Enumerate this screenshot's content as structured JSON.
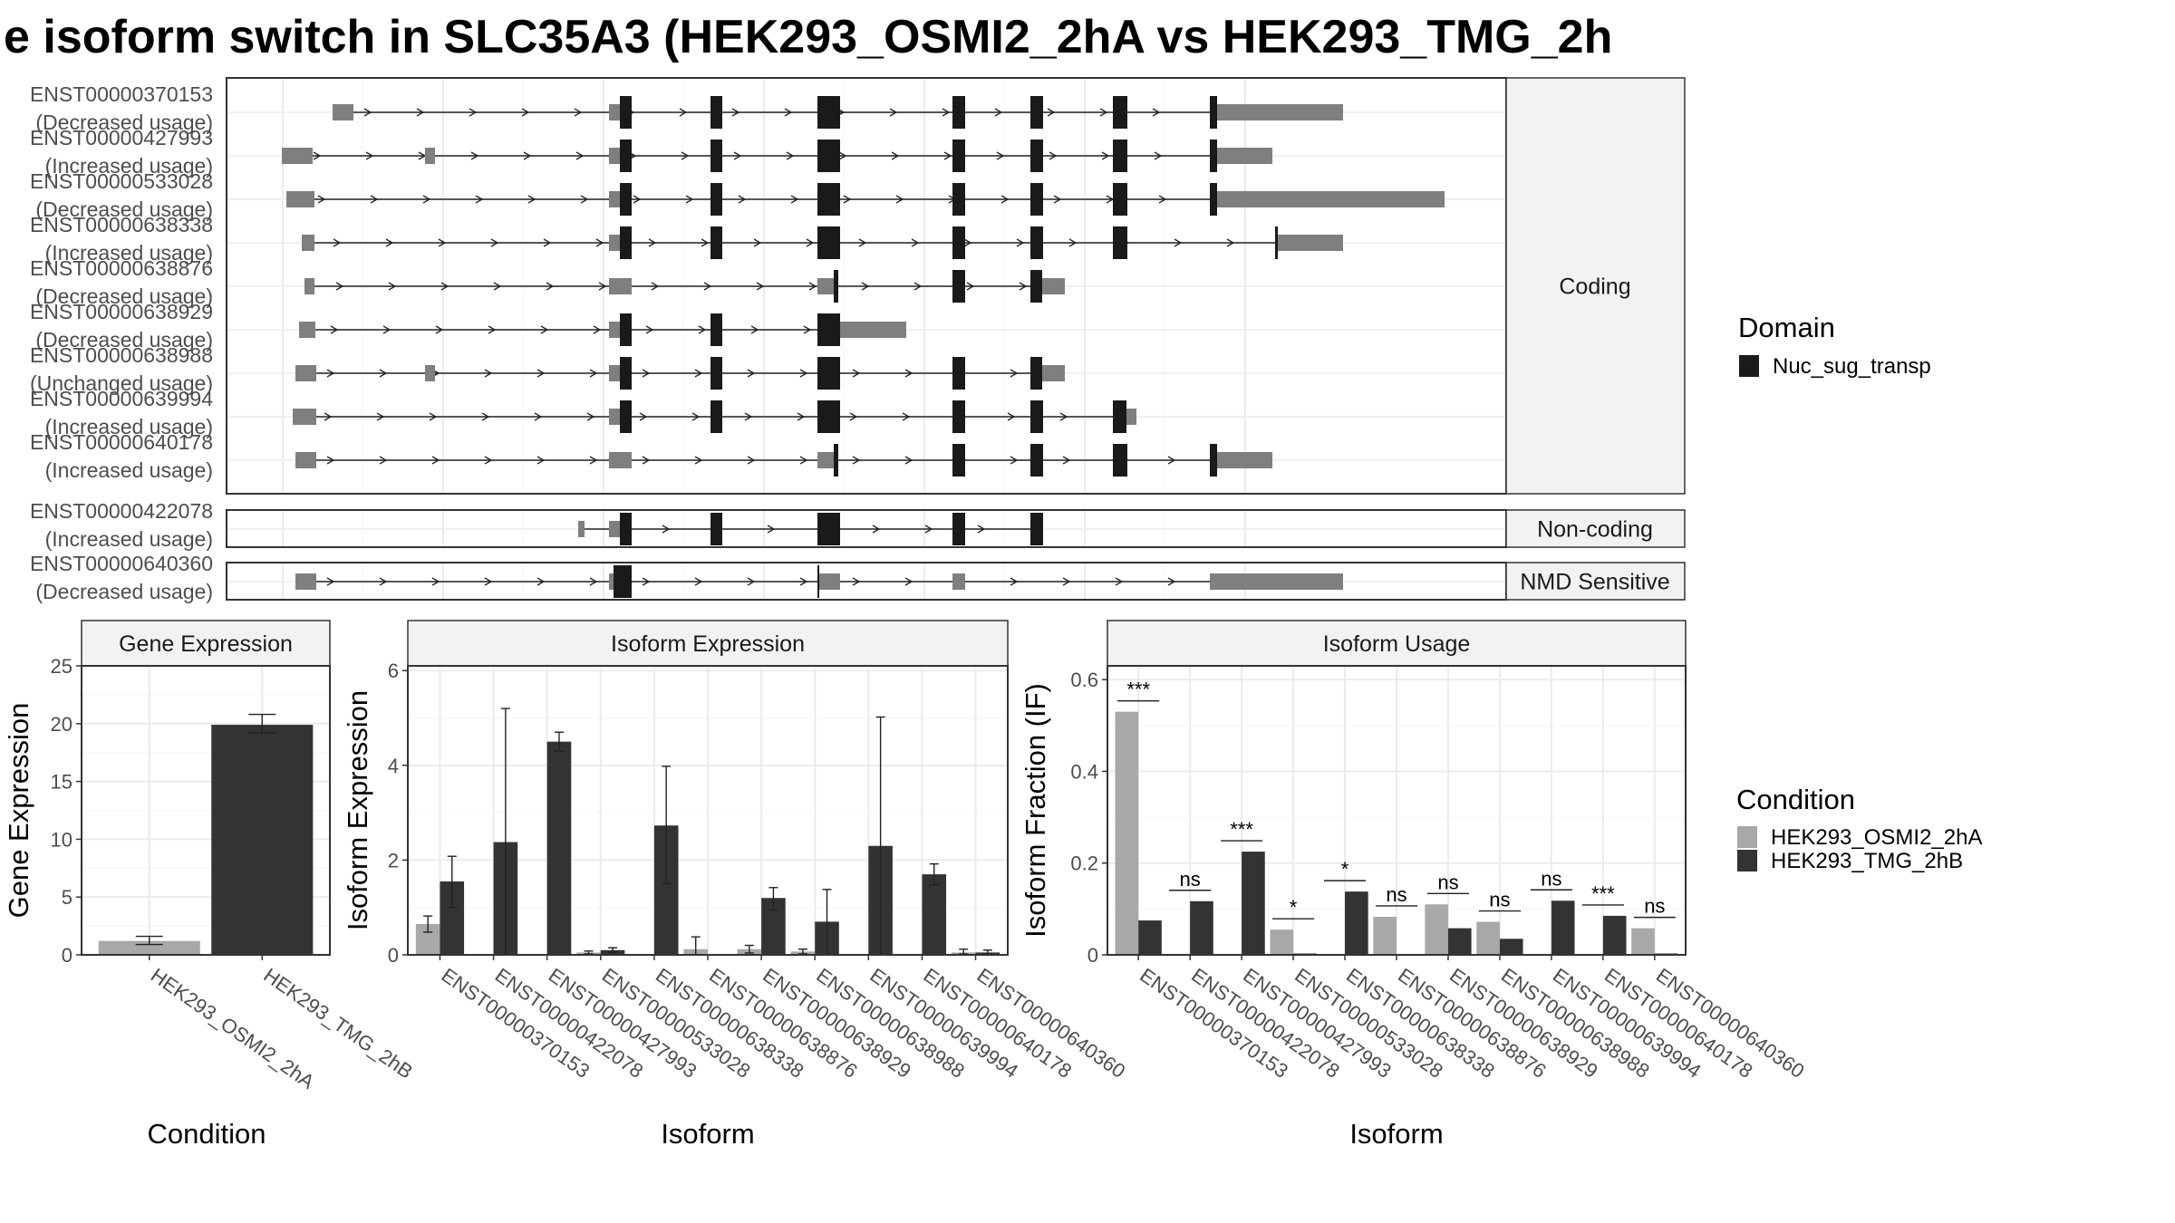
{
  "title": "e isoform switch in SLC35A3 (HEK293_OSMI2_2hA vs HEK293_TMG_2h",
  "colors": {
    "condition_a": "#a8a8a8",
    "condition_b": "#333333",
    "exon_coding": "#1a1a1a",
    "exon_utr": "#7f7f7f",
    "strip_bg": "#f2f2f2",
    "grid": "#ebebeb"
  },
  "transcript_panel": {
    "groups": [
      {
        "label": "Coding",
        "transcripts": [
          {
            "id": "ENST00000370153",
            "usage": "(Decreased usage)"
          },
          {
            "id": "ENST00000427993",
            "usage": "(Increased usage)"
          },
          {
            "id": "ENST00000533028",
            "usage": "(Decreased usage)"
          },
          {
            "id": "ENST00000638338",
            "usage": "(Increased usage)"
          },
          {
            "id": "ENST00000638876",
            "usage": "(Decreased usage)"
          },
          {
            "id": "ENST00000638929",
            "usage": "(Decreased usage)"
          },
          {
            "id": "ENST00000638988",
            "usage": "(Unchanged usage)"
          },
          {
            "id": "ENST00000639994",
            "usage": "(Increased usage)"
          },
          {
            "id": "ENST00000640178",
            "usage": "(Increased usage)"
          }
        ]
      },
      {
        "label": "Non-coding",
        "transcripts": [
          {
            "id": "ENST00000422078",
            "usage": "(Increased usage)"
          }
        ]
      },
      {
        "label": "NMD Sensitive",
        "transcripts": [
          {
            "id": "ENST00000640360",
            "usage": "(Decreased usage)"
          }
        ]
      }
    ]
  },
  "legend_domain": {
    "title": "Domain",
    "items": [
      {
        "label": "Nuc_sug_transp"
      }
    ]
  },
  "legend_condition": {
    "title": "Condition",
    "items": [
      {
        "label": "HEK293_OSMI2_2hA"
      },
      {
        "label": "HEK293_TMG_2hB"
      }
    ]
  },
  "chart_data": [
    {
      "type": "bar",
      "title": "Gene Expression",
      "xlabel": "Condition",
      "ylabel": "Gene Expression",
      "categories": [
        "HEK293_OSMI2_2hA",
        "HEK293_TMG_2hB"
      ],
      "values": [
        1.2,
        19.9
      ],
      "error_low": [
        0.9,
        19.2
      ],
      "error_high": [
        1.6,
        20.8
      ],
      "ylim": [
        0,
        25
      ],
      "yticks": [
        0,
        5,
        10,
        15,
        20,
        25
      ],
      "grid": true
    },
    {
      "type": "bar",
      "title": "Isoform Expression",
      "xlabel": "Isoform",
      "ylabel": "Isoform Expression",
      "categories": [
        "ENST00000370153",
        "ENST00000422078",
        "ENST00000427993",
        "ENST00000533028",
        "ENST00000638338",
        "ENST00000638876",
        "ENST00000638929",
        "ENST00000638988",
        "ENST00000639994",
        "ENST00000640178",
        "ENST00000640360"
      ],
      "series": [
        {
          "name": "HEK293_OSMI2_2hA",
          "values": [
            0.65,
            0,
            0,
            0.05,
            0,
            0.12,
            0.12,
            0.07,
            0,
            0,
            0.05
          ],
          "error_low": [
            0.48,
            0,
            0,
            0.02,
            0,
            0,
            0.04,
            0.02,
            0,
            0,
            0.02
          ],
          "error_high": [
            0.82,
            0,
            0,
            0.08,
            0,
            0.38,
            0.2,
            0.12,
            0,
            0,
            0.12
          ]
        },
        {
          "name": "HEK293_TMG_2hB",
          "values": [
            1.55,
            2.38,
            4.5,
            0.1,
            2.73,
            0,
            1.2,
            0.7,
            2.3,
            1.7,
            0.05
          ],
          "error_low": [
            1.0,
            0,
            4.3,
            0.05,
            1.5,
            0,
            0.95,
            0,
            0,
            1.48,
            0.02
          ],
          "error_high": [
            2.08,
            5.2,
            4.7,
            0.15,
            3.98,
            0,
            1.42,
            1.38,
            5.02,
            1.92,
            0.1
          ]
        }
      ],
      "ylim": [
        0,
        6.1
      ],
      "yticks": [
        0,
        2,
        4,
        6
      ],
      "grid": true
    },
    {
      "type": "bar",
      "title": "Isoform Usage",
      "xlabel": "Isoform",
      "ylabel": "Isoform Fraction (IF)",
      "categories": [
        "ENST00000370153",
        "ENST00000422078",
        "ENST00000427993",
        "ENST00000533028",
        "ENST00000638338",
        "ENST00000638876",
        "ENST00000638929",
        "ENST00000638988",
        "ENST00000639994",
        "ENST00000640178",
        "ENST00000640360"
      ],
      "series": [
        {
          "name": "HEK293_OSMI2_2hA",
          "values": [
            0.53,
            0,
            0,
            0.055,
            0,
            0.083,
            0.11,
            0.072,
            0,
            0,
            0.058
          ]
        },
        {
          "name": "HEK293_TMG_2hB",
          "values": [
            0.075,
            0.117,
            0.225,
            0.003,
            0.138,
            0,
            0.058,
            0.035,
            0.118,
            0.085,
            0.003
          ]
        }
      ],
      "significance": [
        "***",
        "ns",
        "***",
        "*",
        "*",
        "ns",
        "ns",
        "ns",
        "ns",
        "***",
        "ns"
      ],
      "ylim": [
        0,
        0.63
      ],
      "yticks": [
        0.0,
        0.2,
        0.4,
        0.6
      ],
      "grid": true
    }
  ]
}
